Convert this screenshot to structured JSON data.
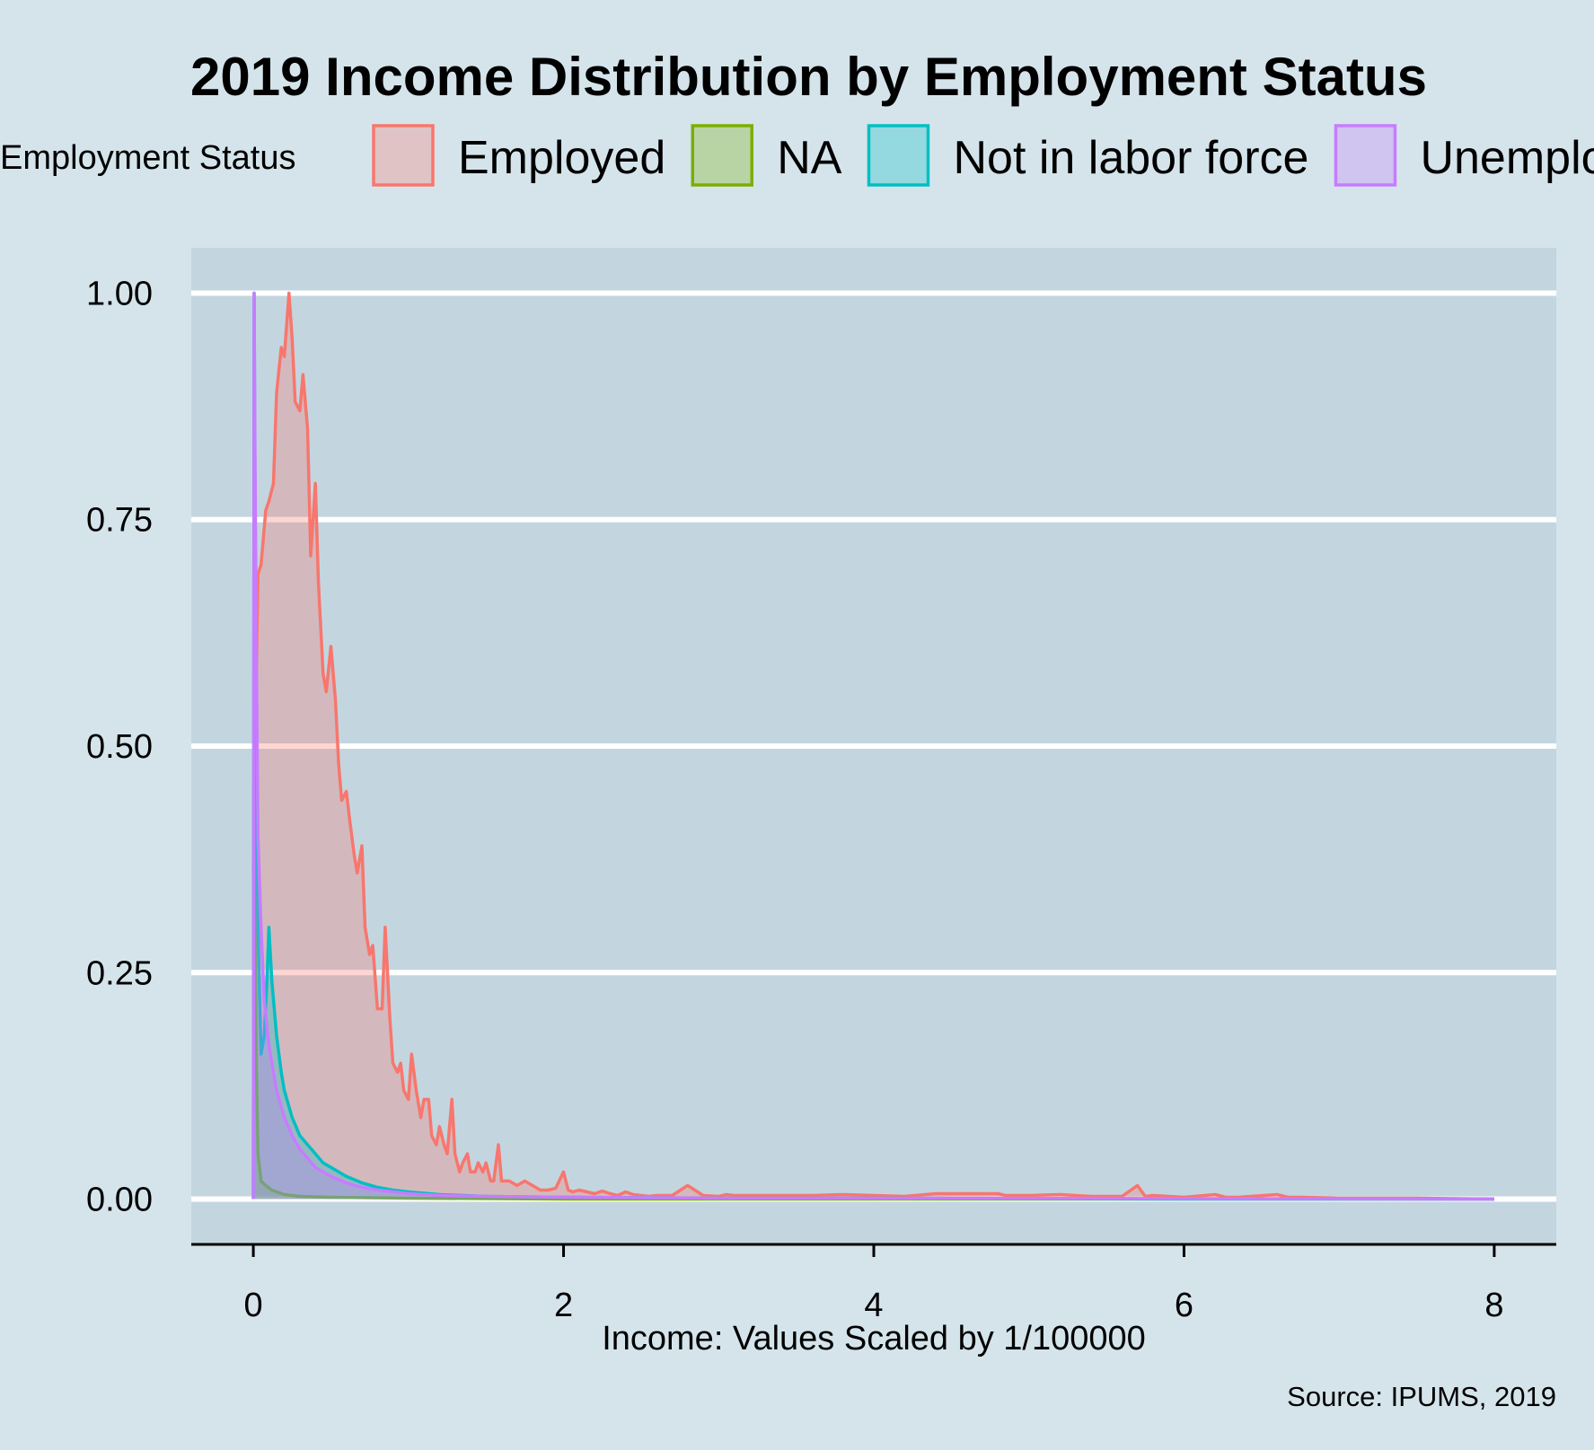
{
  "chart_data": {
    "type": "area",
    "title": "2019 Income Distribution by Employment Status",
    "xlabel": "Income: Values Scaled by 1/100000",
    "ylabel": "",
    "caption": "Source: IPUMS, 2019",
    "legend_title": "Employment Status",
    "legend_position": "top",
    "xlim": [
      -0.4,
      8.4
    ],
    "ylim": [
      -0.05,
      1.05
    ],
    "x_ticks": [
      0,
      2,
      4,
      6,
      8
    ],
    "x_tick_labels": [
      "0",
      "2",
      "4",
      "6",
      "8"
    ],
    "y_ticks": [
      0,
      0.25,
      0.5,
      0.75,
      1
    ],
    "y_tick_labels": [
      "0.00",
      "0.25",
      "0.50",
      "0.75",
      "1.00"
    ],
    "grid": "horizontal-major",
    "series": [
      {
        "name": "Employed",
        "color": "#f8766d",
        "x": [
          0,
          0.03,
          0.05,
          0.08,
          0.1,
          0.13,
          0.15,
          0.18,
          0.2,
          0.23,
          0.25,
          0.27,
          0.3,
          0.32,
          0.35,
          0.37,
          0.4,
          0.42,
          0.45,
          0.47,
          0.5,
          0.53,
          0.55,
          0.57,
          0.6,
          0.62,
          0.65,
          0.67,
          0.7,
          0.72,
          0.75,
          0.77,
          0.8,
          0.83,
          0.85,
          0.88,
          0.9,
          0.93,
          0.95,
          0.97,
          1.0,
          1.02,
          1.05,
          1.08,
          1.1,
          1.13,
          1.15,
          1.18,
          1.2,
          1.23,
          1.25,
          1.28,
          1.3,
          1.33,
          1.35,
          1.38,
          1.4,
          1.43,
          1.45,
          1.48,
          1.5,
          1.53,
          1.55,
          1.58,
          1.6,
          1.65,
          1.7,
          1.75,
          1.8,
          1.85,
          1.9,
          1.95,
          2.0,
          2.03,
          2.06,
          2.1,
          2.15,
          2.2,
          2.25,
          2.3,
          2.35,
          2.4,
          2.45,
          2.5,
          2.55,
          2.6,
          2.7,
          2.8,
          2.9,
          3.0,
          3.05,
          3.1,
          3.2,
          3.4,
          3.6,
          3.8,
          4.0,
          4.2,
          4.4,
          4.6,
          4.7,
          4.8,
          4.85,
          4.9,
          5.0,
          5.2,
          5.4,
          5.6,
          5.7,
          5.75,
          5.8,
          6.0,
          6.2,
          6.27,
          6.35,
          6.6,
          6.67,
          6.75,
          7.0,
          7.2,
          7.5,
          8.0
        ],
        "y": [
          0.36,
          0.69,
          0.7,
          0.76,
          0.77,
          0.79,
          0.89,
          0.94,
          0.93,
          1.0,
          0.95,
          0.88,
          0.87,
          0.91,
          0.85,
          0.71,
          0.79,
          0.68,
          0.58,
          0.56,
          0.61,
          0.55,
          0.48,
          0.44,
          0.45,
          0.42,
          0.38,
          0.36,
          0.39,
          0.3,
          0.27,
          0.28,
          0.21,
          0.21,
          0.3,
          0.2,
          0.15,
          0.14,
          0.15,
          0.12,
          0.11,
          0.16,
          0.12,
          0.09,
          0.11,
          0.11,
          0.07,
          0.06,
          0.08,
          0.06,
          0.05,
          0.11,
          0.05,
          0.03,
          0.04,
          0.05,
          0.03,
          0.03,
          0.04,
          0.03,
          0.04,
          0.02,
          0.02,
          0.06,
          0.02,
          0.02,
          0.015,
          0.02,
          0.015,
          0.01,
          0.01,
          0.012,
          0.03,
          0.01,
          0.008,
          0.01,
          0.008,
          0.006,
          0.009,
          0.006,
          0.004,
          0.008,
          0.005,
          0.004,
          0.003,
          0.004,
          0.004,
          0.015,
          0.004,
          0.003,
          0.005,
          0.004,
          0.004,
          0.004,
          0.004,
          0.005,
          0.004,
          0.003,
          0.006,
          0.006,
          0.006,
          0.006,
          0.004,
          0.004,
          0.004,
          0.005,
          0.003,
          0.003,
          0.015,
          0.003,
          0.004,
          0.002,
          0.005,
          0.002,
          0.002,
          0.005,
          0.002,
          0.002,
          0.001,
          0.001,
          0.001,
          0.0
        ]
      },
      {
        "name": "NA",
        "color": "#7cae00",
        "x": [
          0,
          0.005,
          0.01,
          0.02,
          0.03,
          0.05,
          0.08,
          0.12,
          0.2,
          0.3,
          0.5,
          1.0,
          2.0,
          4.0,
          6.0,
          8.0
        ],
        "y": [
          0,
          0.65,
          0.32,
          0.15,
          0.05,
          0.02,
          0.015,
          0.01,
          0.005,
          0.003,
          0.002,
          0.001,
          0.0,
          0.0,
          0.0,
          0.0
        ]
      },
      {
        "name": "Not in labor force",
        "color": "#00bfc4",
        "x": [
          0,
          0.005,
          0.015,
          0.03,
          0.05,
          0.07,
          0.09,
          0.1,
          0.12,
          0.15,
          0.18,
          0.2,
          0.25,
          0.3,
          0.35,
          0.4,
          0.45,
          0.5,
          0.6,
          0.7,
          0.8,
          0.9,
          1.0,
          1.2,
          1.5,
          2.0,
          3.0,
          4.0,
          6.0,
          8.0
        ],
        "y": [
          0,
          1.0,
          0.6,
          0.3,
          0.16,
          0.18,
          0.25,
          0.3,
          0.24,
          0.18,
          0.14,
          0.12,
          0.09,
          0.07,
          0.06,
          0.05,
          0.04,
          0.035,
          0.025,
          0.018,
          0.013,
          0.01,
          0.008,
          0.005,
          0.003,
          0.002,
          0.001,
          0.001,
          0.0,
          0.0
        ]
      },
      {
        "name": "Unemployed",
        "color": "#c77cff",
        "x": [
          0,
          0.005,
          0.01,
          0.02,
          0.03,
          0.05,
          0.07,
          0.1,
          0.13,
          0.15,
          0.2,
          0.25,
          0.3,
          0.35,
          0.4,
          0.5,
          0.6,
          0.7,
          0.8,
          0.9,
          1.0,
          1.2,
          1.5,
          2.0,
          3.0,
          4.0,
          6.0,
          8.0
        ],
        "y": [
          0,
          1.0,
          0.85,
          0.6,
          0.4,
          0.3,
          0.22,
          0.17,
          0.14,
          0.12,
          0.09,
          0.07,
          0.055,
          0.045,
          0.035,
          0.025,
          0.018,
          0.013,
          0.01,
          0.008,
          0.006,
          0.004,
          0.003,
          0.002,
          0.001,
          0.001,
          0.0005,
          0.0
        ]
      }
    ]
  }
}
